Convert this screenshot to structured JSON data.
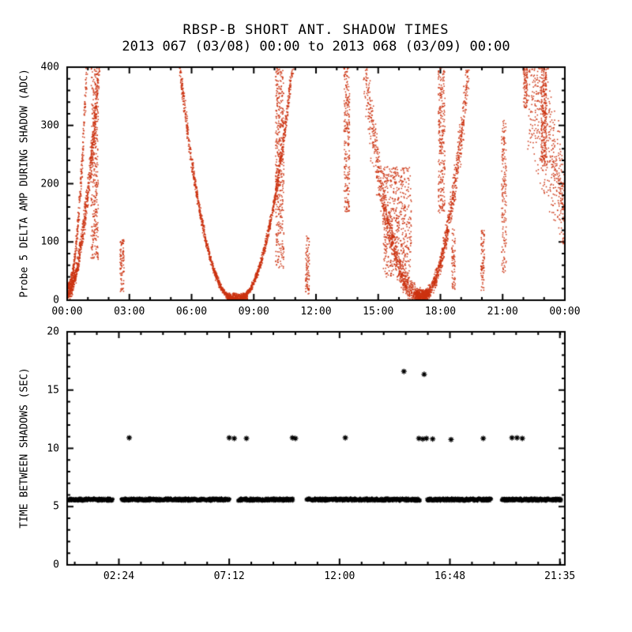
{
  "chart_data": [
    {
      "type": "scatter",
      "title": "RBSP-B SHORT ANT. SHADOW TIMES",
      "subtitle": "2013 067 (03/08) 00:00 to 2013 068 (03/09) 00:00",
      "ylabel": "Probe 5 DELTA AMP DURING SHADOW (ADC)",
      "xlabel": "",
      "xlim": [
        0,
        24
      ],
      "ylim": [
        0,
        400
      ],
      "x_ticks": [
        {
          "t": 0,
          "label": "00:00"
        },
        {
          "t": 3,
          "label": "03:00"
        },
        {
          "t": 6,
          "label": "06:00"
        },
        {
          "t": 9,
          "label": "09:00"
        },
        {
          "t": 12,
          "label": "12:00"
        },
        {
          "t": 15,
          "label": "15:00"
        },
        {
          "t": 18,
          "label": "18:00"
        },
        {
          "t": 21,
          "label": "21:00"
        },
        {
          "t": 24,
          "label": "00:00"
        }
      ],
      "y_ticks": [
        {
          "v": 0,
          "label": "0"
        },
        {
          "v": 100,
          "label": "100"
        },
        {
          "v": 200,
          "label": "200"
        },
        {
          "v": 300,
          "label": "300"
        },
        {
          "v": 400,
          "label": "400"
        }
      ],
      "x_minor_step": 1,
      "y_minor_step": 20,
      "marker": "dot",
      "color": "#cc3311",
      "clusters": [
        {
          "kind": "arm",
          "t0": 0.0,
          "t1": 1.55,
          "v0": 8,
          "v1": 400,
          "p": 1.8,
          "ease": "in",
          "n": 700,
          "jt": 0.1,
          "jv": 30
        },
        {
          "kind": "arm",
          "t0": 0.05,
          "t1": 0.95,
          "v0": 25,
          "v1": 400,
          "p": 2.0,
          "ease": "in",
          "n": 320,
          "jt": 0.07,
          "jv": 22
        },
        {
          "kind": "column",
          "t0": 1.15,
          "t1": 1.5,
          "vmin": 70,
          "vmax": 400,
          "n": 330
        },
        {
          "kind": "column",
          "t0": 2.55,
          "t1": 2.75,
          "vmin": 15,
          "vmax": 105,
          "n": 90
        },
        {
          "kind": "ucurve",
          "tc": 8.15,
          "hw": 2.8,
          "vmax": 430,
          "p": 2.2,
          "n": 1700,
          "jt": 0.06,
          "jv": 14
        },
        {
          "kind": "column",
          "t0": 7.7,
          "t1": 8.7,
          "vmin": 0,
          "vmax": 12,
          "n": 260
        },
        {
          "kind": "column",
          "t0": 10.05,
          "t1": 10.45,
          "vmin": 55,
          "vmax": 400,
          "n": 420
        },
        {
          "kind": "column",
          "t0": 11.5,
          "t1": 11.68,
          "vmin": 10,
          "vmax": 110,
          "n": 85
        },
        {
          "kind": "column",
          "t0": 13.35,
          "t1": 13.62,
          "vmin": 150,
          "vmax": 400,
          "n": 230
        },
        {
          "kind": "arm",
          "t0": 14.35,
          "t1": 17.1,
          "v0": 400,
          "v1": 5,
          "p": 2.2,
          "ease": "out",
          "n": 850,
          "jt": 0.18,
          "jv": 50
        },
        {
          "kind": "column",
          "t0": 15.25,
          "t1": 16.6,
          "vmin": 40,
          "vmax": 230,
          "n": 520
        },
        {
          "kind": "column",
          "t0": 16.8,
          "t1": 17.45,
          "vmin": 0,
          "vmax": 18,
          "n": 260
        },
        {
          "kind": "arm",
          "t0": 17.15,
          "t1": 19.35,
          "v0": 5,
          "v1": 400,
          "p": 2.0,
          "ease": "in",
          "n": 800,
          "jt": 0.1,
          "jv": 35
        },
        {
          "kind": "column",
          "t0": 17.9,
          "t1": 18.22,
          "vmin": 150,
          "vmax": 400,
          "n": 260
        },
        {
          "kind": "column",
          "t0": 18.55,
          "t1": 18.72,
          "vmin": 15,
          "vmax": 125,
          "n": 70
        },
        {
          "kind": "column",
          "t0": 19.95,
          "t1": 20.12,
          "vmin": 15,
          "vmax": 120,
          "n": 80
        },
        {
          "kind": "column",
          "t0": 20.95,
          "t1": 21.18,
          "vmin": 45,
          "vmax": 310,
          "n": 160
        },
        {
          "kind": "arm",
          "t0": 22.2,
          "t1": 24.0,
          "v0": 400,
          "v1": 165,
          "p": 1.0,
          "ease": "out",
          "n": 520,
          "jt": 0.12,
          "jv": 120
        },
        {
          "kind": "column",
          "t0": 22.85,
          "t1": 23.12,
          "vmin": 230,
          "vmax": 400,
          "n": 210
        },
        {
          "kind": "column",
          "t0": 22.0,
          "t1": 22.2,
          "vmin": 330,
          "vmax": 400,
          "n": 90
        }
      ]
    },
    {
      "type": "scatter",
      "title": "",
      "ylabel": "TIME BETWEEN SHADOWS (SEC)",
      "xlabel": "",
      "xlim": [
        0.15,
        21.8
      ],
      "ylim": [
        0,
        20
      ],
      "x_ticks": [
        {
          "t": 2.4,
          "label": "02:24"
        },
        {
          "t": 7.2,
          "label": "07:12"
        },
        {
          "t": 12.0,
          "label": "12:00"
        },
        {
          "t": 16.8,
          "label": "16:48"
        },
        {
          "t": 21.583,
          "label": "21:35"
        }
      ],
      "y_ticks": [
        {
          "v": 0,
          "label": "0"
        },
        {
          "v": 5,
          "label": "5"
        },
        {
          "v": 10,
          "label": "10"
        },
        {
          "v": 15,
          "label": "15"
        },
        {
          "v": 20,
          "label": "20"
        }
      ],
      "x_minor_step": 0.96,
      "y_minor_step": 1,
      "marker": "asterisk",
      "color": "#000000",
      "band": {
        "value": 5.6,
        "thickness": 0.26,
        "segments": [
          [
            0.2,
            2.14
          ],
          [
            2.5,
            7.22
          ],
          [
            7.58,
            9.98
          ],
          [
            10.55,
            15.5
          ],
          [
            15.8,
            18.6
          ],
          [
            19.05,
            21.65
          ]
        ]
      },
      "outliers": [
        {
          "t": 2.85,
          "v": 10.9
        },
        {
          "t": 7.2,
          "v": 10.9
        },
        {
          "t": 7.42,
          "v": 10.85
        },
        {
          "t": 7.95,
          "v": 10.85
        },
        {
          "t": 9.95,
          "v": 10.9
        },
        {
          "t": 10.08,
          "v": 10.85
        },
        {
          "t": 12.25,
          "v": 10.9
        },
        {
          "t": 15.45,
          "v": 10.85
        },
        {
          "t": 15.62,
          "v": 10.8
        },
        {
          "t": 15.78,
          "v": 10.85
        },
        {
          "t": 16.05,
          "v": 10.8
        },
        {
          "t": 16.85,
          "v": 10.75
        },
        {
          "t": 18.25,
          "v": 10.85
        },
        {
          "t": 19.5,
          "v": 10.9
        },
        {
          "t": 19.72,
          "v": 10.9
        },
        {
          "t": 19.95,
          "v": 10.85
        },
        {
          "t": 14.8,
          "v": 16.6
        },
        {
          "t": 15.68,
          "v": 16.35
        }
      ]
    }
  ]
}
